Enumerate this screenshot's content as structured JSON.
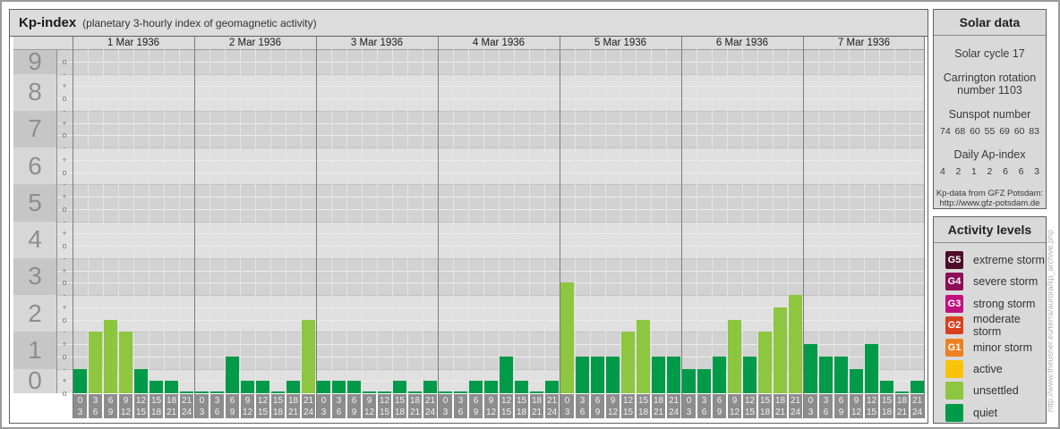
{
  "title": {
    "main": "Kp-index",
    "subtitle": "(planetary 3-hourly index of geomagnetic activity)"
  },
  "chart_data": {
    "type": "bar",
    "title": "Kp-index (planetary 3-hourly index of geomagnetic activity)",
    "ylabel": "Kp",
    "y_axis": {
      "numbers": [
        9,
        8,
        7,
        6,
        5,
        4,
        3,
        2,
        1,
        0
      ],
      "sub_levels": [
        "+",
        "o",
        "-"
      ],
      "range_note": "Kp scale 0o to 9o in thirds (-, o, +)"
    },
    "slots": [
      [
        "0",
        "3"
      ],
      [
        "3",
        "6"
      ],
      [
        "6",
        "9"
      ],
      [
        "9",
        "12"
      ],
      [
        "12",
        "15"
      ],
      [
        "15",
        "18"
      ],
      [
        "18",
        "21"
      ],
      [
        "21",
        "24"
      ]
    ],
    "days": [
      {
        "date": "1 Mar 1936",
        "kp": [
          "1-",
          "2-",
          "2o",
          "2-",
          "1-",
          "0+",
          "0+",
          "0o"
        ]
      },
      {
        "date": "2 Mar 1936",
        "kp": [
          "0o",
          "0o",
          "1o",
          "0+",
          "0+",
          "0o",
          "0+",
          "2o"
        ]
      },
      {
        "date": "3 Mar 1936",
        "kp": [
          "0+",
          "0+",
          "0+",
          "0o",
          "0o",
          "0+",
          "0o",
          "0+"
        ]
      },
      {
        "date": "4 Mar 1936",
        "kp": [
          "0o",
          "0o",
          "0+",
          "0+",
          "1o",
          "0+",
          "0o",
          "0+"
        ]
      },
      {
        "date": "5 Mar 1936",
        "kp": [
          "3o",
          "1o",
          "1o",
          "1o",
          "2-",
          "2o",
          "1o",
          "1o"
        ]
      },
      {
        "date": "6 Mar 1936",
        "kp": [
          "1-",
          "1-",
          "1o",
          "2o",
          "1o",
          "2-",
          "2+",
          "3-"
        ]
      },
      {
        "date": "7 Mar 1936",
        "kp": [
          "1+",
          "1o",
          "1o",
          "1-",
          "1+",
          "0+",
          "0o",
          "0+"
        ]
      }
    ],
    "colors": {
      "quiet": "#009a49",
      "unsettled": "#8dc63f"
    },
    "legend_position": "right",
    "grid": true
  },
  "solar_data": {
    "header": "Solar data",
    "solar_cycle": "Solar cycle 17",
    "carrington": "Carrington rotation number 1103",
    "sunspot_header": "Sunspot number",
    "sunspot_values": [
      "74",
      "68",
      "60",
      "55",
      "69",
      "60",
      "83"
    ],
    "ap_header": "Daily Ap-index",
    "ap_values": [
      "4",
      "2",
      "1",
      "2",
      "6",
      "6",
      "3"
    ],
    "credit_line1": "Kp-data from GFZ Potsdam:",
    "credit_line2": "http://www.gfz-potsdam.de"
  },
  "activity_levels": {
    "header": "Activity levels",
    "items": [
      {
        "badge": "G5",
        "color": "#4d0c2c",
        "label": "extreme storm"
      },
      {
        "badge": "G4",
        "color": "#8d0e57",
        "label": "severe storm"
      },
      {
        "badge": "G3",
        "color": "#c2117e",
        "label": "strong storm"
      },
      {
        "badge": "G2",
        "color": "#d8401f",
        "label": "moderate storm"
      },
      {
        "badge": "G1",
        "color": "#ec8022",
        "label": "minor storm"
      },
      {
        "badge": "",
        "color": "#f9c408",
        "label": "active"
      },
      {
        "badge": "",
        "color": "#8dc63f",
        "label": "unsettled"
      },
      {
        "badge": "",
        "color": "#009a49",
        "label": "quiet"
      }
    ]
  },
  "archive_url": "http://www.theusner.eu/terra/aurora/kp_archive.php"
}
